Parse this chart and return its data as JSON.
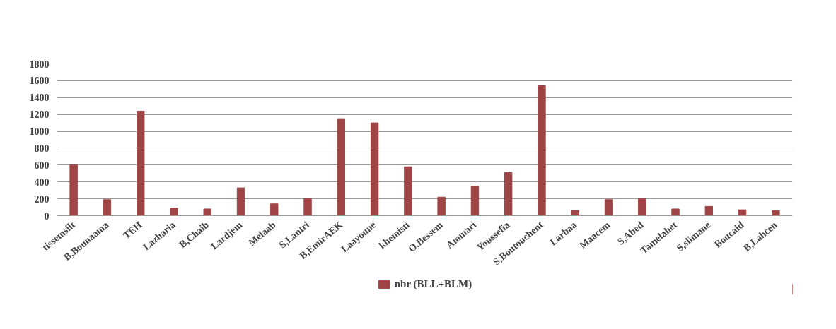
{
  "chart_data": {
    "type": "bar",
    "categories": [
      "tissemsilt",
      "B,Bounaama",
      "TEH",
      "Lazharia",
      "B,Chaib",
      "Lardjem",
      "Melaab",
      "S,Lantri",
      "B,EmirAEK",
      "Laayoune",
      "khemisti",
      "O,Bessem",
      "Ammari",
      "Youssefia",
      "S,Boutouchent",
      "Larbaa",
      "Maacem",
      "S,Abed",
      "Tamelahet",
      "S,slimane",
      "Boucaid",
      "B,Lahcen"
    ],
    "series": [
      {
        "name": "nbr (BLL+BLM)",
        "color": "#a04545",
        "values": [
          600,
          190,
          1240,
          90,
          80,
          330,
          140,
          200,
          1150,
          1100,
          580,
          220,
          350,
          510,
          1540,
          60,
          190,
          200,
          80,
          110,
          70,
          60
        ]
      }
    ],
    "ylim": [
      0,
      1800
    ],
    "yticks": [
      0,
      200,
      400,
      600,
      800,
      1000,
      1200,
      1400,
      1600,
      1800
    ],
    "grid": "y",
    "legend": "bottom"
  }
}
